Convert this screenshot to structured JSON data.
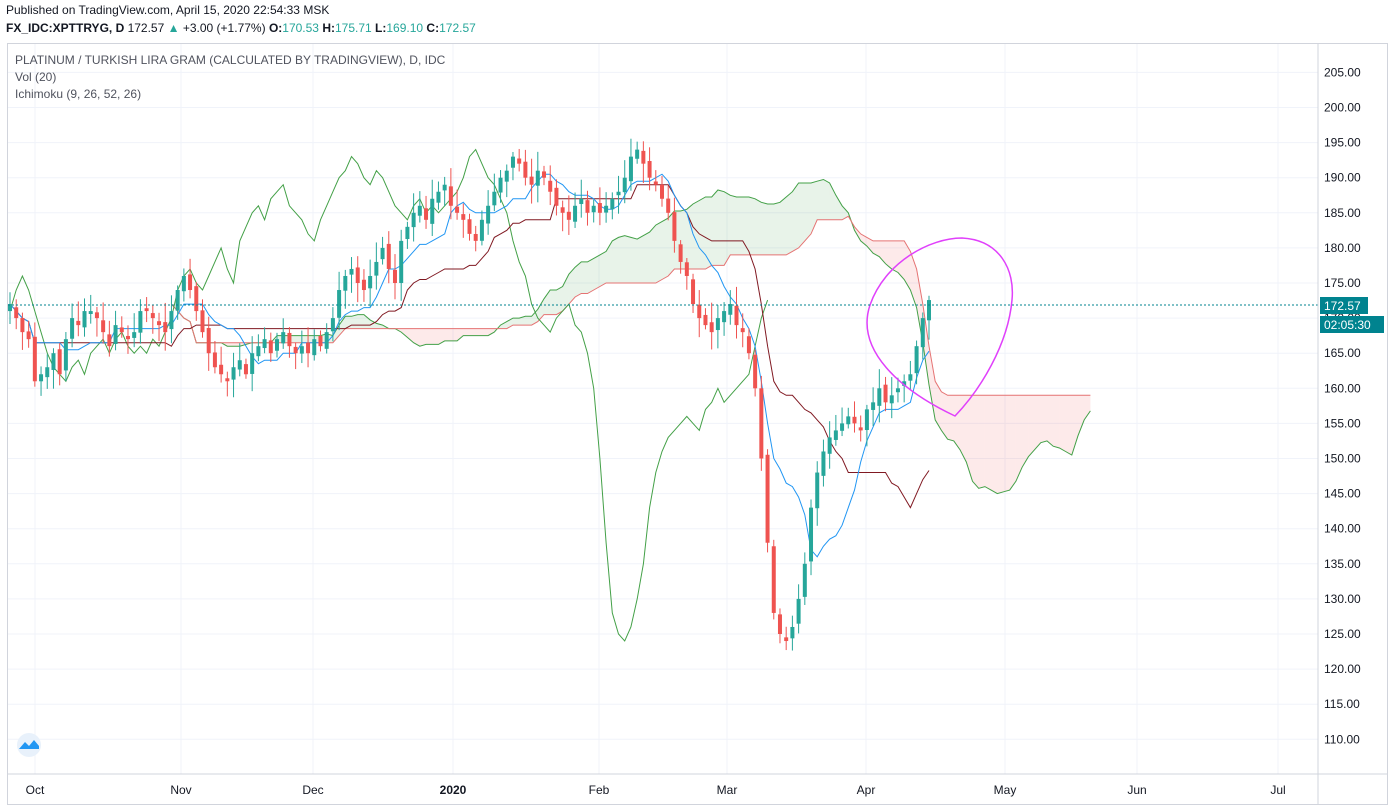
{
  "header": {
    "published": "Published on TradingView.com, April 15, 2020 22:54:33 MSK",
    "symbol": "FX_IDC:XPTTRYG, D",
    "last": "172.57",
    "change_arrow": "▲",
    "change": "+3.00 (+1.77%)",
    "o_label": "O:",
    "o_value": "170.53",
    "h_label": "H:",
    "h_value": "175.71",
    "l_label": "L:",
    "l_value": "169.10",
    "c_label": "C:",
    "c_value": "172.57"
  },
  "legend": {
    "title": "PLATINUM / TURKISH LIRA GRAM (CALCULATED BY TRADINGVIEW), D, IDC",
    "vol": "Vol (20)",
    "ichimoku": "Ichimoku (9, 26, 52, 26)"
  },
  "price_badge": {
    "price": "172.57",
    "countdown": "02:05:30"
  },
  "colors": {
    "up": "#26a69a",
    "down": "#ef5350",
    "tenkan": "#2196f3",
    "kijun": "#801922",
    "chikou": "#43a047",
    "span_a": "#43a047",
    "span_b": "#e57373",
    "annotation": "#e040fb",
    "last_line": "#00838f"
  },
  "chart_data": {
    "type": "candlestick",
    "title": "PLATINUM / TURKISH LIRA GRAM (CALCULATED BY TRADINGVIEW), D, IDC",
    "y_ticks": [
      "205.00",
      "200.00",
      "195.00",
      "190.00",
      "185.00",
      "180.00",
      "175.00",
      "170.00",
      "165.00",
      "160.00",
      "155.00",
      "150.00",
      "145.00",
      "140.00",
      "135.00",
      "130.00",
      "125.00",
      "120.00",
      "115.00",
      "110.00"
    ],
    "x_ticks": [
      "Oct",
      "Nov",
      "Dec",
      "2020",
      "Feb",
      "Mar",
      "Apr",
      "May",
      "Jun",
      "Jul"
    ],
    "ylim": [
      106,
      210
    ],
    "last_price": 172.57,
    "ohlc_close": [
      172,
      170,
      168,
      167,
      161,
      162,
      163,
      165,
      162,
      167,
      170,
      169,
      171,
      171,
      170,
      168,
      166,
      169,
      168,
      167,
      168,
      171,
      171,
      170,
      169,
      168,
      171,
      174,
      176,
      174,
      171,
      168,
      165,
      163,
      162,
      161,
      163,
      164,
      162,
      165,
      166,
      167,
      165,
      167,
      168,
      166,
      165,
      166,
      165,
      167,
      166,
      168,
      170,
      174,
      176,
      177,
      175,
      174,
      176,
      178,
      180,
      177,
      175,
      181,
      183,
      185,
      186,
      184,
      187,
      188,
      189,
      186,
      185,
      184,
      182,
      181,
      184,
      186,
      188,
      190,
      191,
      193,
      192,
      190,
      189,
      191,
      190,
      188,
      186,
      185,
      184,
      186,
      187,
      185,
      186,
      185,
      186,
      187,
      188,
      190,
      193,
      194,
      192,
      190,
      189,
      187,
      185,
      181,
      178,
      176,
      172,
      170,
      169,
      168,
      170,
      171,
      172,
      169,
      168,
      165,
      160,
      150,
      138,
      128,
      125,
      124,
      126,
      130,
      135,
      143,
      148,
      151,
      153,
      154,
      155,
      156,
      155,
      154,
      157,
      158,
      160,
      158,
      159,
      160,
      161,
      162,
      166,
      170,
      172.57
    ],
    "tenkan_sen": "Ichimoku conversion line (blue)",
    "kijun_sen": "Ichimoku base line (dark red)",
    "chikou_span": "Ichimoku lagging span (green)"
  }
}
